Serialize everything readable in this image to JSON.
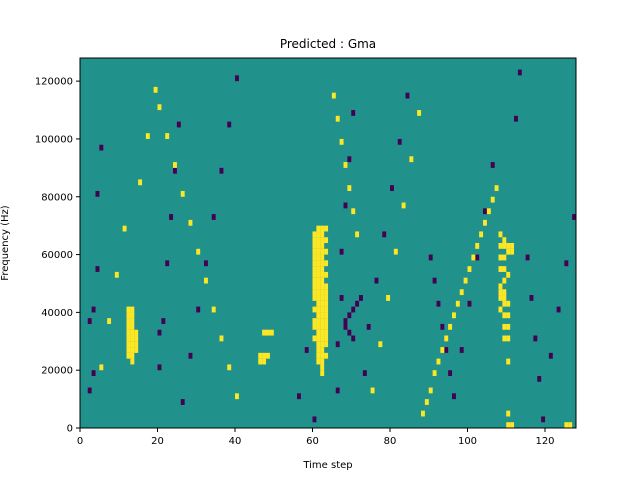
{
  "chart_data": {
    "type": "heatmap",
    "title": "Predicted : Gma",
    "xlabel": "Time step",
    "ylabel": "Frequency (Hz)",
    "xlim": [
      0,
      128
    ],
    "ylim": [
      0,
      128000
    ],
    "grid": false,
    "x_ticks": [
      {
        "value": 0,
        "label": "0"
      },
      {
        "value": 20,
        "label": "20"
      },
      {
        "value": 40,
        "label": "40"
      },
      {
        "value": 60,
        "label": "60"
      },
      {
        "value": 80,
        "label": "80"
      },
      {
        "value": 100,
        "label": "100"
      },
      {
        "value": 120,
        "label": "120"
      }
    ],
    "y_ticks": [
      {
        "value": 0,
        "label": "0"
      },
      {
        "value": 20000,
        "label": "20000"
      },
      {
        "value": 40000,
        "label": "40000"
      },
      {
        "value": 60000,
        "label": "60000"
      },
      {
        "value": 80000,
        "label": "80000"
      },
      {
        "value": 100000,
        "label": "100000"
      },
      {
        "value": 120000,
        "label": "120000"
      }
    ],
    "grid_size": {
      "time_steps": 128,
      "frequency_bins": 64
    },
    "bin_height_hz": 2000,
    "colormap": {
      "low": "#440154",
      "mid": "#21918c",
      "high": "#fde725"
    },
    "background_value": 0,
    "high_cells": [
      [
        12,
        12
      ],
      [
        12,
        13
      ],
      [
        12,
        14
      ],
      [
        12,
        15
      ],
      [
        12,
        16
      ],
      [
        12,
        17
      ],
      [
        12,
        18
      ],
      [
        12,
        19
      ],
      [
        12,
        20
      ],
      [
        13,
        11
      ],
      [
        13,
        12
      ],
      [
        13,
        13
      ],
      [
        13,
        14
      ],
      [
        13,
        15
      ],
      [
        13,
        16
      ],
      [
        13,
        17
      ],
      [
        13,
        18
      ],
      [
        13,
        19
      ],
      [
        13,
        20
      ],
      [
        14,
        13
      ],
      [
        14,
        14
      ],
      [
        14,
        15
      ],
      [
        14,
        16
      ],
      [
        47,
        16
      ],
      [
        48,
        16
      ],
      [
        49,
        16
      ],
      [
        46,
        11
      ],
      [
        46,
        12
      ],
      [
        47,
        11
      ],
      [
        47,
        12
      ],
      [
        48,
        12
      ],
      [
        60,
        15
      ],
      [
        60,
        17
      ],
      [
        60,
        18
      ],
      [
        60,
        20
      ],
      [
        60,
        22
      ],
      [
        60,
        23
      ],
      [
        60,
        24
      ],
      [
        60,
        25
      ],
      [
        60,
        26
      ],
      [
        60,
        27
      ],
      [
        60,
        28
      ],
      [
        60,
        29
      ],
      [
        60,
        30
      ],
      [
        60,
        31
      ],
      [
        60,
        32
      ],
      [
        60,
        33
      ],
      [
        61,
        11
      ],
      [
        61,
        12
      ],
      [
        61,
        13
      ],
      [
        61,
        14
      ],
      [
        61,
        15
      ],
      [
        61,
        16
      ],
      [
        61,
        17
      ],
      [
        61,
        18
      ],
      [
        61,
        19
      ],
      [
        61,
        20
      ],
      [
        61,
        21
      ],
      [
        61,
        22
      ],
      [
        61,
        23
      ],
      [
        61,
        24
      ],
      [
        61,
        25
      ],
      [
        61,
        26
      ],
      [
        61,
        27
      ],
      [
        61,
        28
      ],
      [
        61,
        29
      ],
      [
        61,
        30
      ],
      [
        61,
        31
      ],
      [
        61,
        32
      ],
      [
        61,
        33
      ],
      [
        61,
        34
      ],
      [
        62,
        9
      ],
      [
        62,
        10
      ],
      [
        62,
        11
      ],
      [
        62,
        12
      ],
      [
        62,
        13
      ],
      [
        62,
        14
      ],
      [
        62,
        15
      ],
      [
        62,
        16
      ],
      [
        62,
        17
      ],
      [
        62,
        18
      ],
      [
        62,
        19
      ],
      [
        62,
        20
      ],
      [
        62,
        21
      ],
      [
        62,
        22
      ],
      [
        62,
        23
      ],
      [
        62,
        24
      ],
      [
        62,
        25
      ],
      [
        62,
        26
      ],
      [
        62,
        27
      ],
      [
        62,
        28
      ],
      [
        62,
        29
      ],
      [
        62,
        30
      ],
      [
        62,
        31
      ],
      [
        62,
        32
      ],
      [
        62,
        33
      ],
      [
        62,
        34
      ],
      [
        63,
        12
      ],
      [
        63,
        14
      ],
      [
        63,
        15
      ],
      [
        63,
        16
      ],
      [
        63,
        17
      ],
      [
        63,
        18
      ],
      [
        63,
        19
      ],
      [
        63,
        20
      ],
      [
        63,
        21
      ],
      [
        63,
        22
      ],
      [
        63,
        23
      ],
      [
        63,
        24
      ],
      [
        63,
        26
      ],
      [
        63,
        28
      ],
      [
        63,
        30
      ],
      [
        63,
        32
      ],
      [
        63,
        34
      ],
      [
        108,
        20
      ],
      [
        108,
        22
      ],
      [
        108,
        23
      ],
      [
        108,
        24
      ],
      [
        108,
        27
      ],
      [
        108,
        29
      ],
      [
        108,
        31
      ],
      [
        108,
        33
      ],
      [
        109,
        15
      ],
      [
        109,
        17
      ],
      [
        109,
        19
      ],
      [
        109,
        21
      ],
      [
        109,
        22
      ],
      [
        109,
        23
      ],
      [
        109,
        25
      ],
      [
        109,
        27
      ],
      [
        109,
        29
      ],
      [
        109,
        31
      ],
      [
        109,
        32
      ],
      [
        110,
        0
      ],
      [
        110,
        2
      ],
      [
        110,
        11
      ],
      [
        110,
        15
      ],
      [
        110,
        17
      ],
      [
        110,
        19
      ],
      [
        110,
        21
      ],
      [
        110,
        26
      ],
      [
        110,
        30
      ],
      [
        110,
        31
      ],
      [
        111,
        0
      ],
      [
        111,
        30
      ],
      [
        111,
        31
      ],
      [
        125,
        0
      ],
      [
        126,
        0
      ],
      [
        88,
        2
      ],
      [
        89,
        4
      ],
      [
        90,
        6
      ],
      [
        91,
        9
      ],
      [
        92,
        11
      ],
      [
        93,
        13
      ],
      [
        94,
        15
      ],
      [
        95,
        17
      ],
      [
        96,
        19
      ],
      [
        97,
        21
      ],
      [
        98,
        23
      ],
      [
        99,
        25
      ],
      [
        100,
        27
      ],
      [
        101,
        29
      ],
      [
        102,
        31
      ],
      [
        103,
        33
      ],
      [
        104,
        35
      ],
      [
        105,
        37
      ],
      [
        106,
        39
      ],
      [
        107,
        41
      ],
      [
        20,
        55
      ],
      [
        22,
        50
      ],
      [
        24,
        45
      ],
      [
        26,
        40
      ],
      [
        28,
        35
      ],
      [
        30,
        30
      ],
      [
        32,
        25
      ],
      [
        34,
        20
      ],
      [
        36,
        15
      ],
      [
        38,
        10
      ],
      [
        40,
        5
      ],
      [
        65,
        57
      ],
      [
        66,
        53
      ],
      [
        67,
        49
      ],
      [
        68,
        45
      ],
      [
        69,
        41
      ],
      [
        70,
        37
      ],
      [
        71,
        33
      ],
      [
        5,
        10
      ],
      [
        7,
        18
      ],
      [
        9,
        26
      ],
      [
        11,
        34
      ],
      [
        15,
        42
      ],
      [
        17,
        50
      ],
      [
        19,
        58
      ],
      [
        75,
        6
      ],
      [
        77,
        14
      ],
      [
        79,
        22
      ],
      [
        81,
        30
      ],
      [
        83,
        38
      ],
      [
        85,
        46
      ],
      [
        87,
        54
      ]
    ],
    "low_cells": [
      [
        2,
        6
      ],
      [
        2,
        18
      ],
      [
        3,
        9
      ],
      [
        3,
        20
      ],
      [
        4,
        27
      ],
      [
        4,
        40
      ],
      [
        5,
        48
      ],
      [
        20,
        10
      ],
      [
        20,
        16
      ],
      [
        21,
        18
      ],
      [
        22,
        28
      ],
      [
        23,
        36
      ],
      [
        24,
        44
      ],
      [
        25,
        52
      ],
      [
        66,
        6
      ],
      [
        66,
        14
      ],
      [
        67,
        22
      ],
      [
        67,
        30
      ],
      [
        68,
        38
      ],
      [
        69,
        46
      ],
      [
        70,
        54
      ],
      [
        68,
        18
      ],
      [
        69,
        19
      ],
      [
        70,
        20
      ],
      [
        71,
        21
      ],
      [
        72,
        22
      ],
      [
        68,
        17
      ],
      [
        69,
        16
      ],
      [
        70,
        15
      ],
      [
        90,
        29
      ],
      [
        91,
        25
      ],
      [
        92,
        21
      ],
      [
        93,
        17
      ],
      [
        94,
        13
      ],
      [
        95,
        9
      ],
      [
        115,
        29
      ],
      [
        116,
        22
      ],
      [
        117,
        15
      ],
      [
        118,
        8
      ],
      [
        119,
        1
      ],
      [
        26,
        4
      ],
      [
        28,
        12
      ],
      [
        30,
        20
      ],
      [
        32,
        28
      ],
      [
        34,
        36
      ],
      [
        36,
        44
      ],
      [
        38,
        52
      ],
      [
        40,
        60
      ],
      [
        56,
        5
      ],
      [
        58,
        13
      ],
      [
        60,
        1
      ],
      [
        73,
        9
      ],
      [
        74,
        17
      ],
      [
        76,
        25
      ],
      [
        78,
        33
      ],
      [
        80,
        41
      ],
      [
        82,
        49
      ],
      [
        84,
        57
      ],
      [
        96,
        5
      ],
      [
        98,
        13
      ],
      [
        100,
        21
      ],
      [
        102,
        29
      ],
      [
        104,
        37
      ],
      [
        106,
        45
      ],
      [
        112,
        53
      ],
      [
        113,
        61
      ],
      [
        121,
        12
      ],
      [
        123,
        20
      ],
      [
        125,
        28
      ],
      [
        127,
        36
      ]
    ]
  }
}
